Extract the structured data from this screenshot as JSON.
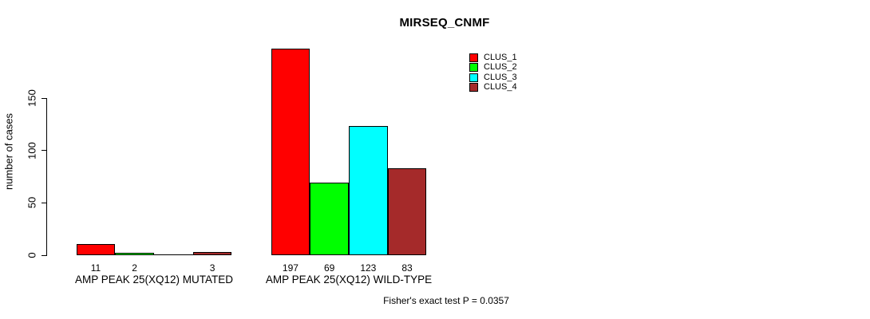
{
  "chart_data": {
    "type": "bar",
    "title": "MIRSEQ_CNMF",
    "ylabel": "number of cases",
    "xlabel": "",
    "ylim": [
      0,
      150
    ],
    "yticks": [
      0,
      50,
      100,
      150
    ],
    "grid": false,
    "legend_position": "top-right",
    "categories": [
      "AMP PEAK 25(XQ12) MUTATED",
      "AMP PEAK 25(XQ12) WILD-TYPE"
    ],
    "series": [
      {
        "name": "CLUS_1",
        "color": "#FF0000",
        "values": [
          11,
          197
        ]
      },
      {
        "name": "CLUS_2",
        "color": "#00FF00",
        "values": [
          2,
          69
        ]
      },
      {
        "name": "CLUS_3",
        "color": "#00FFFF",
        "values": [
          0,
          123
        ]
      },
      {
        "name": "CLUS_4",
        "color": "#A52A2A",
        "values": [
          3,
          83
        ]
      }
    ],
    "bar_value_labels": [
      [
        "11",
        "2",
        "",
        "3"
      ],
      [
        "197",
        "69",
        "123",
        "83"
      ]
    ],
    "annotation": "Fisher's exact test P = 0.0357"
  }
}
